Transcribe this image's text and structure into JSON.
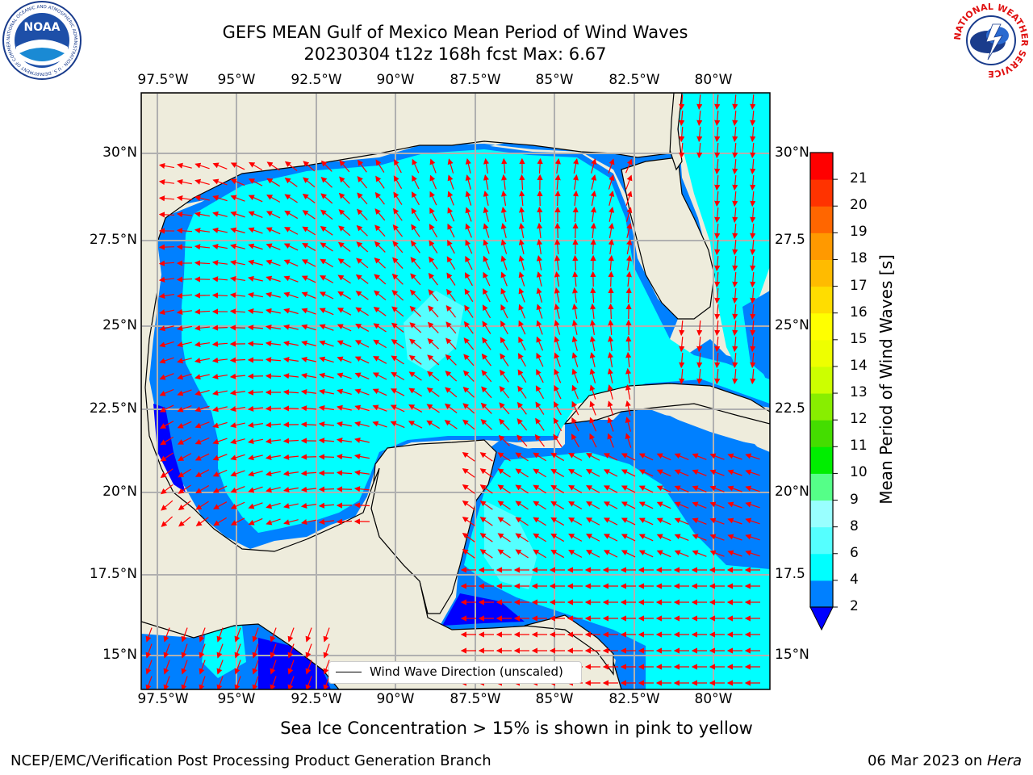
{
  "header": {
    "title_line1": "GEFS MEAN Gulf of Mexico Mean Period of Wind Waves",
    "title_line2": "20230304 t12z 168h fcst   Max: 6.67"
  },
  "map": {
    "lon_labels": [
      "97.5°W",
      "95°W",
      "92.5°W",
      "90°W",
      "87.5°W",
      "85°W",
      "82.5°W",
      "80°W"
    ],
    "lat_labels_left": [
      "30°N",
      "27.5°N",
      "25°N",
      "22.5°N",
      "20°N",
      "17.5°N",
      "15°N"
    ],
    "lat_labels_right": [
      "30°N",
      "27.5",
      "25°N",
      "22.5",
      "20°N",
      "17.5",
      "15°N"
    ],
    "legend_label": "Wind Wave Direction (unscaled)",
    "colors": {
      "land": "#eeecdc",
      "ocean_4_6": "#00ffff",
      "ocean_6_8": "#55ffff",
      "ocean_2_4": "#0080ff",
      "ocean_lt2": "#0000ff",
      "arrow": "#ff0000"
    }
  },
  "colorbar": {
    "title": "Mean Period of Wind Waves [s]",
    "ticks": [
      "2",
      "4",
      "6",
      "8",
      "9",
      "10",
      "11",
      "12",
      "13",
      "14",
      "15",
      "16",
      "17",
      "18",
      "19",
      "20",
      "21"
    ],
    "bands": [
      "#0080ff",
      "#00ffff",
      "#55ffff",
      "#99ffff",
      "#55ff88",
      "#00ee00",
      "#44dd00",
      "#88ee00",
      "#ccff00",
      "#eeff00",
      "#ffff00",
      "#ffdd00",
      "#ffbb00",
      "#ff9900",
      "#ff6600",
      "#ff3300",
      "#ff0000"
    ],
    "extend_color": "#0000ff"
  },
  "footer": {
    "note": "Sea Ice Concentration > 15% is shown in pink to yellow",
    "credit": "NCEP/EMC/Verification Post Processing Product Generation Branch",
    "date": "06 Mar 2023 on ",
    "machine": "Hera"
  },
  "logos": {
    "noaa_text": "NOAA",
    "noaa_ring": "NATIONAL OCEANIC AND ATMOSPHERIC ADMINISTRATION · U.S. DEPARTMENT OF COMMERCE",
    "nws_ring": "NATIONAL WEATHER SERVICE"
  }
}
